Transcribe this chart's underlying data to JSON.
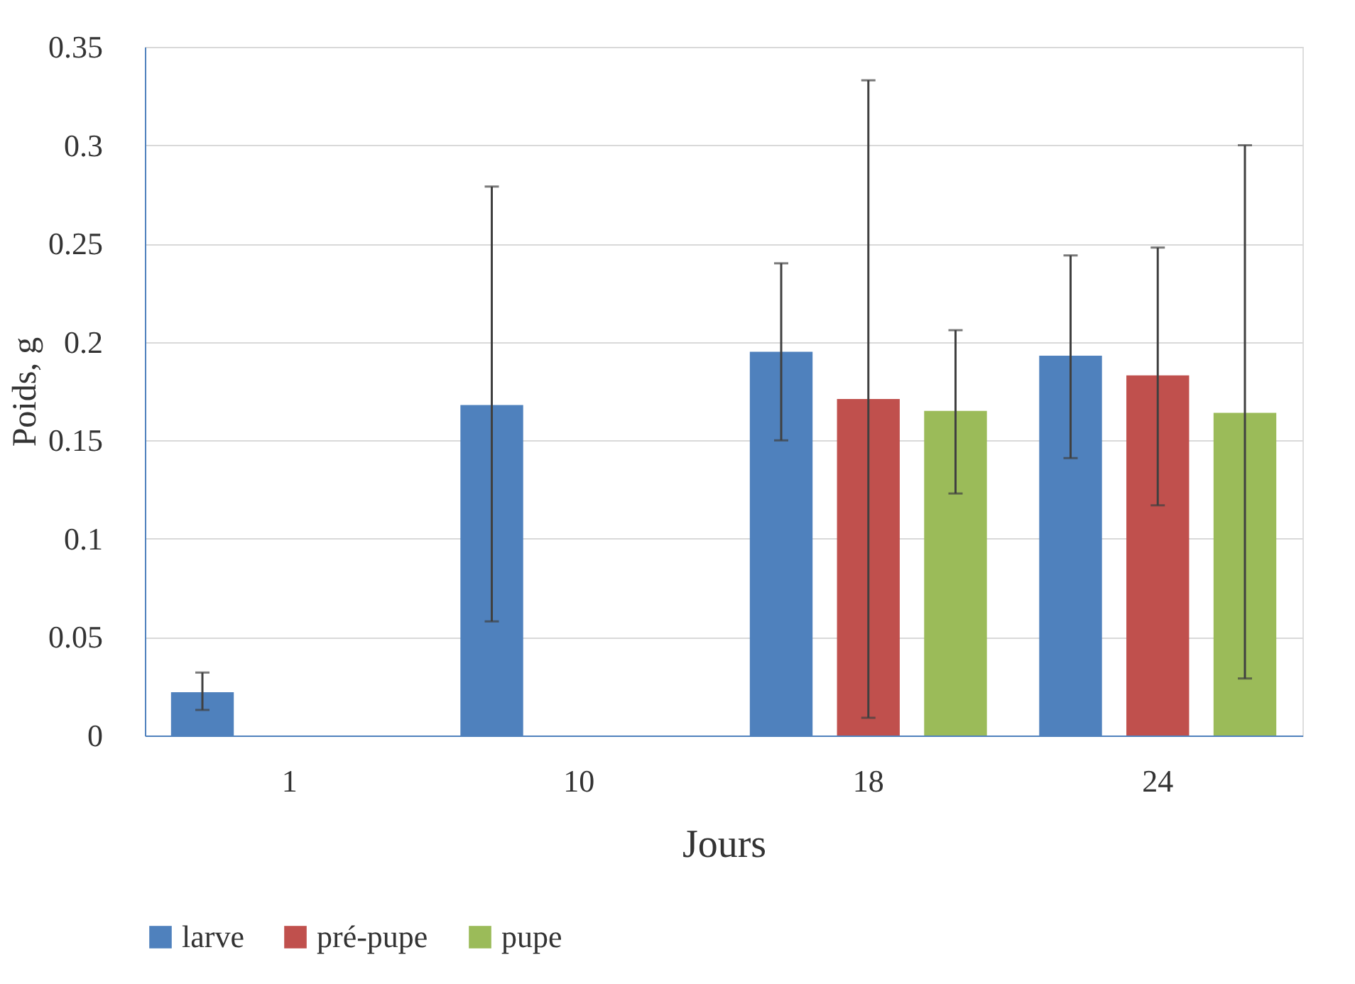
{
  "chart_data": {
    "type": "bar",
    "xlabel": "Jours",
    "ylabel": "Poids, g",
    "categories": [
      "1",
      "10",
      "18",
      "24"
    ],
    "series": [
      {
        "name": "larve",
        "color": "#4f81bd",
        "values": [
          0.022,
          0.168,
          0.195,
          0.193
        ],
        "errors": [
          [
            0.013,
            0.032
          ],
          [
            0.058,
            0.279
          ],
          [
            0.15,
            0.24
          ],
          [
            0.141,
            0.244
          ]
        ]
      },
      {
        "name": "pré-pupe",
        "color": "#c0504d",
        "values": [
          null,
          null,
          0.171,
          0.183
        ],
        "errors": [
          null,
          null,
          [
            0.009,
            0.333
          ],
          [
            0.117,
            0.248
          ]
        ]
      },
      {
        "name": "pupe",
        "color": "#9bbb59",
        "values": [
          null,
          null,
          0.165,
          0.164
        ],
        "errors": [
          null,
          null,
          [
            0.123,
            0.206
          ],
          [
            0.029,
            0.3
          ]
        ]
      }
    ],
    "ylim": [
      0,
      0.35
    ],
    "yticks": [
      0,
      0.05,
      0.1,
      0.15,
      0.2,
      0.25,
      0.3,
      0.35
    ],
    "grid": "y",
    "legend": "bottom"
  }
}
